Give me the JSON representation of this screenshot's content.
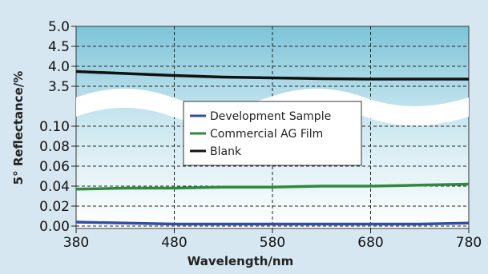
{
  "chart_data": {
    "type": "line",
    "xlabel": "Wavelength/nm",
    "ylabel": "5° Reflectance/%",
    "xlim": [
      380,
      780
    ],
    "x_ticks": [
      380,
      480,
      580,
      680,
      780
    ],
    "x_tick_labels": [
      "380",
      "480",
      "580",
      "680",
      "780"
    ],
    "broken_y_axis": true,
    "y_segments": [
      {
        "range": [
          3.5,
          5.0
        ],
        "ticks": [
          3.5,
          4.0,
          4.5,
          5.0
        ],
        "tick_labels": [
          "3.5",
          "4.0",
          "4.5",
          "5.0"
        ]
      },
      {
        "range": [
          0.0,
          0.1
        ],
        "ticks": [
          0.0,
          0.02,
          0.04,
          0.06,
          0.08,
          0.1
        ],
        "tick_labels": [
          "0.00",
          "0.02",
          "0.04",
          "0.06",
          "0.08",
          "0.10"
        ]
      }
    ],
    "grid": true,
    "legend_position": "center",
    "series": [
      {
        "name": "Development Sample",
        "color": "#2f4fa3",
        "x": [
          380,
          430,
          480,
          530,
          580,
          630,
          680,
          730,
          780
        ],
        "y": [
          0.004,
          0.003,
          0.002,
          0.002,
          0.002,
          0.002,
          0.002,
          0.002,
          0.003
        ]
      },
      {
        "name": "Commercial AG Film",
        "color": "#2f8a3e",
        "x": [
          380,
          430,
          480,
          530,
          580,
          630,
          680,
          730,
          780
        ],
        "y": [
          0.037,
          0.038,
          0.038,
          0.039,
          0.039,
          0.04,
          0.04,
          0.041,
          0.042
        ]
      },
      {
        "name": "Blank",
        "color": "#111111",
        "x": [
          380,
          430,
          480,
          530,
          580,
          630,
          680,
          730,
          780
        ],
        "y": [
          3.87,
          3.82,
          3.77,
          3.73,
          3.71,
          3.69,
          3.68,
          3.68,
          3.68
        ]
      }
    ]
  }
}
